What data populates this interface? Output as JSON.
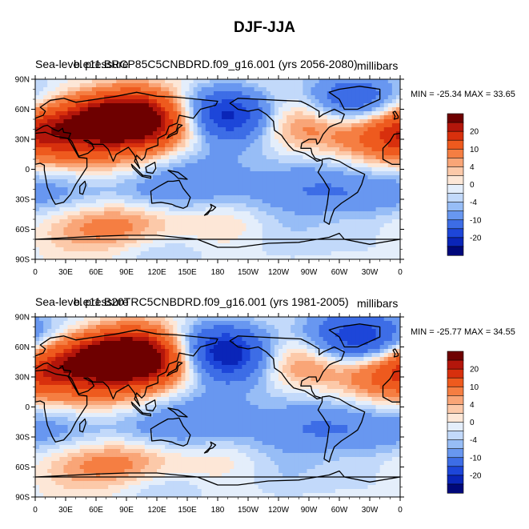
{
  "figure": {
    "title": "DJF-JJA"
  },
  "chart_data": [
    {
      "type": "heatmap",
      "title": "Sea-level pressure",
      "case": "b.e11.BRCP85C5CNBDRD.f09_g16.001 (yrs 2056-2080)",
      "units": "millibars",
      "stats_text": "MIN = -25.34 MAX =  33.65",
      "min": -25.34,
      "max": 33.65,
      "x_tick_labels": [
        "0",
        "30E",
        "60E",
        "90E",
        "120E",
        "150E",
        "180",
        "150W",
        "120W",
        "90W",
        "60W",
        "30W",
        "0"
      ],
      "y_tick_labels": [
        "90N",
        "60N",
        "30N",
        "0",
        "30S",
        "60S",
        "90S"
      ],
      "xlim": [
        0,
        360
      ],
      "ylim": [
        -90,
        90
      ],
      "colorbar_ticks": [
        "20",
        "10",
        "4",
        "0",
        "-4",
        "-10",
        "-20"
      ],
      "features": [
        {
          "lon": 100,
          "lat": 50,
          "value": 28
        },
        {
          "lon": 65,
          "lat": 55,
          "value": 16
        },
        {
          "lon": 150,
          "lat": 38,
          "value": 6
        },
        {
          "lon": 18,
          "lat": 70,
          "value": 4
        },
        {
          "lon": 10,
          "lat": 40,
          "value": 12
        },
        {
          "lon": 345,
          "lat": 38,
          "value": 12
        },
        {
          "lon": 255,
          "lat": 45,
          "value": 12
        },
        {
          "lon": 225,
          "lat": 58,
          "value": 6
        },
        {
          "lon": 60,
          "lat": 15,
          "value": 5
        },
        {
          "lon": 200,
          "lat": 52,
          "value": -20
        },
        {
          "lon": 180,
          "lat": 55,
          "value": -12
        },
        {
          "lon": 325,
          "lat": 62,
          "value": -16
        },
        {
          "lon": 50,
          "lat": 68,
          "value": -10
        },
        {
          "lon": 300,
          "lat": 75,
          "value": -6
        },
        {
          "lon": 160,
          "lat": 10,
          "value": -5
        },
        {
          "lon": 260,
          "lat": 12,
          "value": -3
        },
        {
          "lon": 25,
          "lat": -25,
          "value": -6
        },
        {
          "lon": 80,
          "lat": -35,
          "value": -5
        },
        {
          "lon": 135,
          "lat": -25,
          "value": -9
        },
        {
          "lon": 280,
          "lat": -25,
          "value": -8
        },
        {
          "lon": 210,
          "lat": -28,
          "value": -6
        },
        {
          "lon": 330,
          "lat": -25,
          "value": -5
        },
        {
          "lon": 90,
          "lat": -52,
          "value": 12
        },
        {
          "lon": 210,
          "lat": -50,
          "value": 6
        },
        {
          "lon": 30,
          "lat": -55,
          "value": 5
        },
        {
          "lon": 160,
          "lat": -45,
          "value": 3
        },
        {
          "lon": 300,
          "lat": -48,
          "value": 4
        },
        {
          "lon": 240,
          "lat": -62,
          "value": -6
        },
        {
          "lon": 330,
          "lat": -65,
          "value": -4
        },
        {
          "lon": 120,
          "lat": -78,
          "value": -6
        }
      ]
    },
    {
      "type": "heatmap",
      "title": "Sea-level pressure",
      "case": "b.e11.B20TRC5CNBDRD.f09_g16.001 (yrs 1981-2005)",
      "units": "millibars",
      "stats_text": "MIN = -25.77 MAX =  34.55",
      "min": -25.77,
      "max": 34.55,
      "x_tick_labels": [
        "0",
        "30E",
        "60E",
        "90E",
        "120E",
        "150E",
        "180",
        "150W",
        "120W",
        "90W",
        "60W",
        "30W",
        "0"
      ],
      "y_tick_labels": [
        "90N",
        "60N",
        "30N",
        "0",
        "30S",
        "60S",
        "90S"
      ],
      "xlim": [
        0,
        360
      ],
      "ylim": [
        -90,
        90
      ],
      "colorbar_ticks": [
        "20",
        "10",
        "4",
        "0",
        "-4",
        "-10",
        "-20"
      ],
      "features": [
        {
          "lon": 100,
          "lat": 50,
          "value": 30
        },
        {
          "lon": 65,
          "lat": 55,
          "value": 16
        },
        {
          "lon": 150,
          "lat": 38,
          "value": 6
        },
        {
          "lon": 18,
          "lat": 68,
          "value": 3
        },
        {
          "lon": 10,
          "lat": 40,
          "value": 12
        },
        {
          "lon": 345,
          "lat": 38,
          "value": 10
        },
        {
          "lon": 255,
          "lat": 45,
          "value": 12
        },
        {
          "lon": 230,
          "lat": 58,
          "value": 4
        },
        {
          "lon": 60,
          "lat": 15,
          "value": 5
        },
        {
          "lon": 195,
          "lat": 50,
          "value": -22
        },
        {
          "lon": 175,
          "lat": 58,
          "value": -12
        },
        {
          "lon": 328,
          "lat": 62,
          "value": -20
        },
        {
          "lon": 50,
          "lat": 70,
          "value": -10
        },
        {
          "lon": 300,
          "lat": 75,
          "value": -8
        },
        {
          "lon": 160,
          "lat": 10,
          "value": -5
        },
        {
          "lon": 260,
          "lat": 12,
          "value": -3
        },
        {
          "lon": 25,
          "lat": -25,
          "value": -6
        },
        {
          "lon": 80,
          "lat": -35,
          "value": -5
        },
        {
          "lon": 135,
          "lat": -25,
          "value": -9
        },
        {
          "lon": 280,
          "lat": -25,
          "value": -8
        },
        {
          "lon": 210,
          "lat": -28,
          "value": -6
        },
        {
          "lon": 330,
          "lat": -25,
          "value": -5
        },
        {
          "lon": 90,
          "lat": -52,
          "value": 12
        },
        {
          "lon": 210,
          "lat": -50,
          "value": 5
        },
        {
          "lon": 30,
          "lat": -55,
          "value": 5
        },
        {
          "lon": 160,
          "lat": -45,
          "value": 3
        },
        {
          "lon": 300,
          "lat": -48,
          "value": 4
        },
        {
          "lon": 240,
          "lat": -62,
          "value": -6
        },
        {
          "lon": 330,
          "lat": -65,
          "value": -4
        },
        {
          "lon": 120,
          "lat": -78,
          "value": -6
        }
      ]
    }
  ],
  "colorbar_colors": [
    "#6e0000",
    "#b3160b",
    "#d8300d",
    "#ee5a1e",
    "#f57e42",
    "#f9a577",
    "#fcc9a9",
    "#fde7d7",
    "#e4eefb",
    "#c2d9fa",
    "#97bdf6",
    "#6897f0",
    "#3d6de6",
    "#1d46d9",
    "#0a25b8",
    "#00087a"
  ],
  "colorbar_levels": [
    24,
    20,
    16,
    10,
    6,
    4,
    2,
    0,
    -2,
    -4,
    -6,
    -10,
    -16,
    -20,
    -24
  ]
}
